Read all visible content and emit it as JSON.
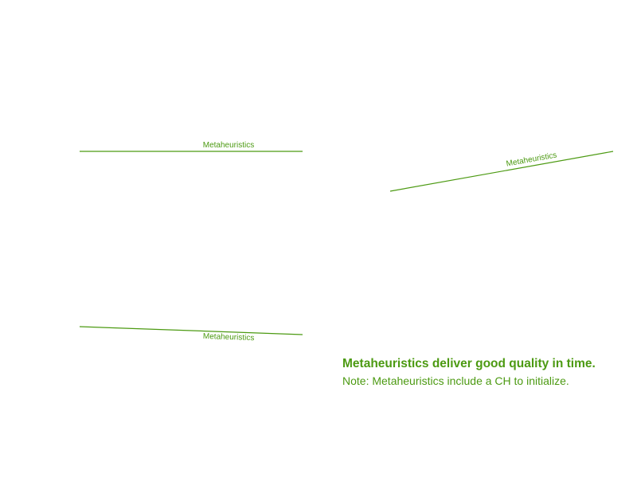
{
  "colors": {
    "accent": "#4c9a12",
    "background": "#ffffff"
  },
  "connectors": [
    {
      "label": "Metaheuristics"
    },
    {
      "label": "Metaheuristics"
    },
    {
      "label": "Metaheuristics"
    }
  ],
  "caption": {
    "title": "Metaheuristics deliver good quality in time.",
    "note": "Note: Metaheuristics include a CH to initialize."
  }
}
